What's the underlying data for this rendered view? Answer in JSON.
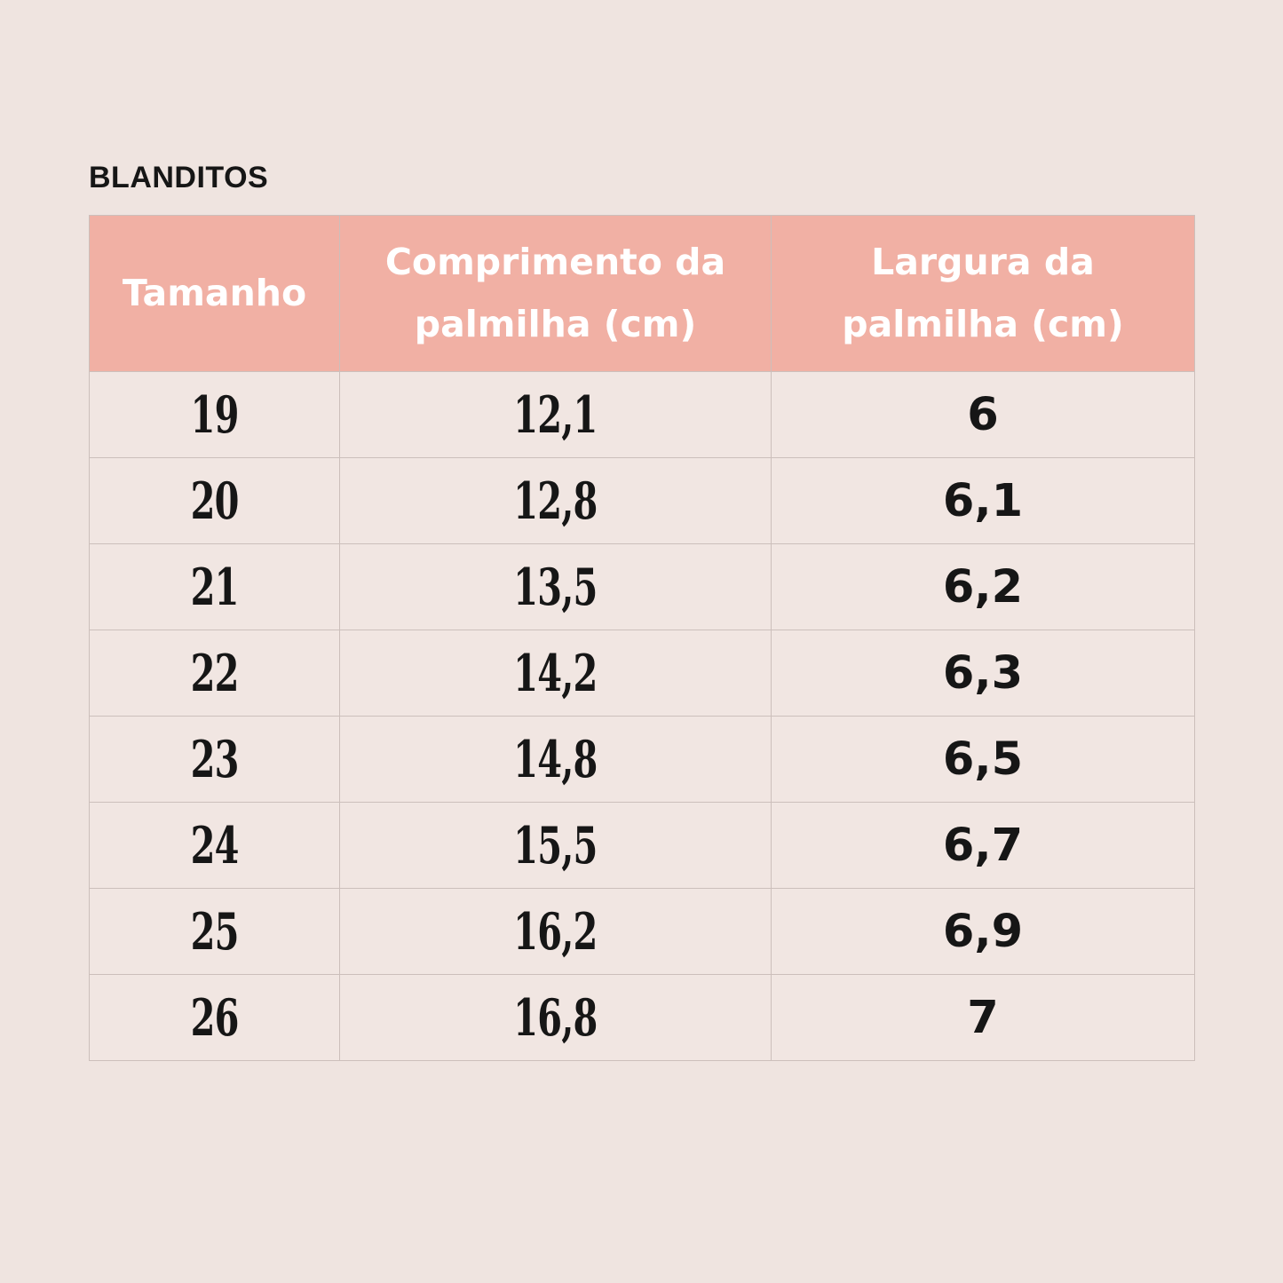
{
  "page": {
    "background": "#efe4e0"
  },
  "title": "BLANDITOS",
  "table": {
    "header_bg": "#f1b0a4",
    "header_text_color": "#ffffff",
    "cell_bg": "#f1e6e2",
    "border_color": "#ccbfbb",
    "text_color": "#161616",
    "columns": [
      {
        "key": "tamanho",
        "label": "Tamanho"
      },
      {
        "key": "comprimento",
        "label": "Comprimento da\npalmilha (cm)"
      },
      {
        "key": "largura",
        "label": "Largura da\npalmilha (cm)"
      }
    ],
    "rows": [
      [
        "19",
        "12,1",
        "6"
      ],
      [
        "20",
        "12,8",
        "6,1"
      ],
      [
        "21",
        "13,5",
        "6,2"
      ],
      [
        "22",
        "14,2",
        "6,3"
      ],
      [
        "23",
        "14,8",
        "6,5"
      ],
      [
        "24",
        "15,5",
        "6,7"
      ],
      [
        "25",
        "16,2",
        "6,9"
      ],
      [
        "26",
        "16,8",
        "7"
      ]
    ]
  },
  "chart_data": {
    "type": "table",
    "title": "BLANDITOS",
    "columns": [
      "Tamanho",
      "Comprimento da palmilha (cm)",
      "Largura da palmilha (cm)"
    ],
    "rows": [
      [
        19,
        12.1,
        6.0
      ],
      [
        20,
        12.8,
        6.1
      ],
      [
        21,
        13.5,
        6.2
      ],
      [
        22,
        14.2,
        6.3
      ],
      [
        23,
        14.8,
        6.5
      ],
      [
        24,
        15.5,
        6.7
      ],
      [
        25,
        16.2,
        6.9
      ],
      [
        26,
        16.8,
        7.0
      ]
    ],
    "decimal_separator": ",",
    "layout": {
      "header_position": "top",
      "grid": true
    }
  }
}
